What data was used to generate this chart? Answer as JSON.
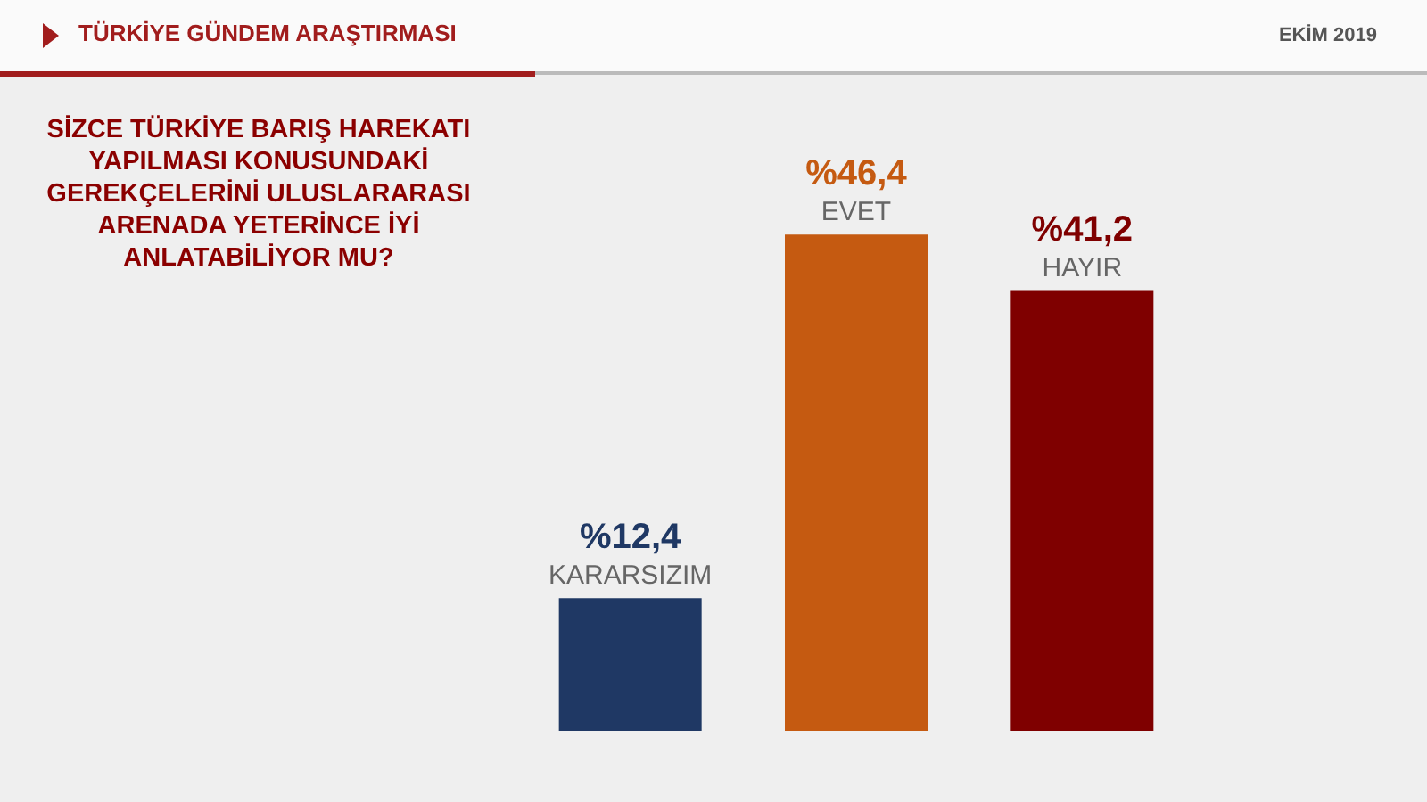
{
  "chart_data": {
    "type": "bar",
    "title": "TÜRKİYE GÜNDEM ARAŞTIRMASI",
    "subtitle": "SİZCE TÜRKİYE BARIŞ HAREKATI YAPILMASI KONUSUNDAKİ GEREKÇELERİNİ ULUSLARARASI ARENADA YETERİNCE İYİ ANLATABİLİYOR MU?",
    "annotations": [
      "EKİM 2019"
    ],
    "categories": [
      "KARARSIZIM",
      "EVET",
      "HAYIR"
    ],
    "values": [
      12.4,
      46.4,
      41.2
    ],
    "colors": [
      "#1f3864",
      "#c55a11",
      "#7f0000"
    ],
    "value_labels": [
      "%12,4",
      "%46,4",
      "%41,2"
    ],
    "grid": false
  }
}
